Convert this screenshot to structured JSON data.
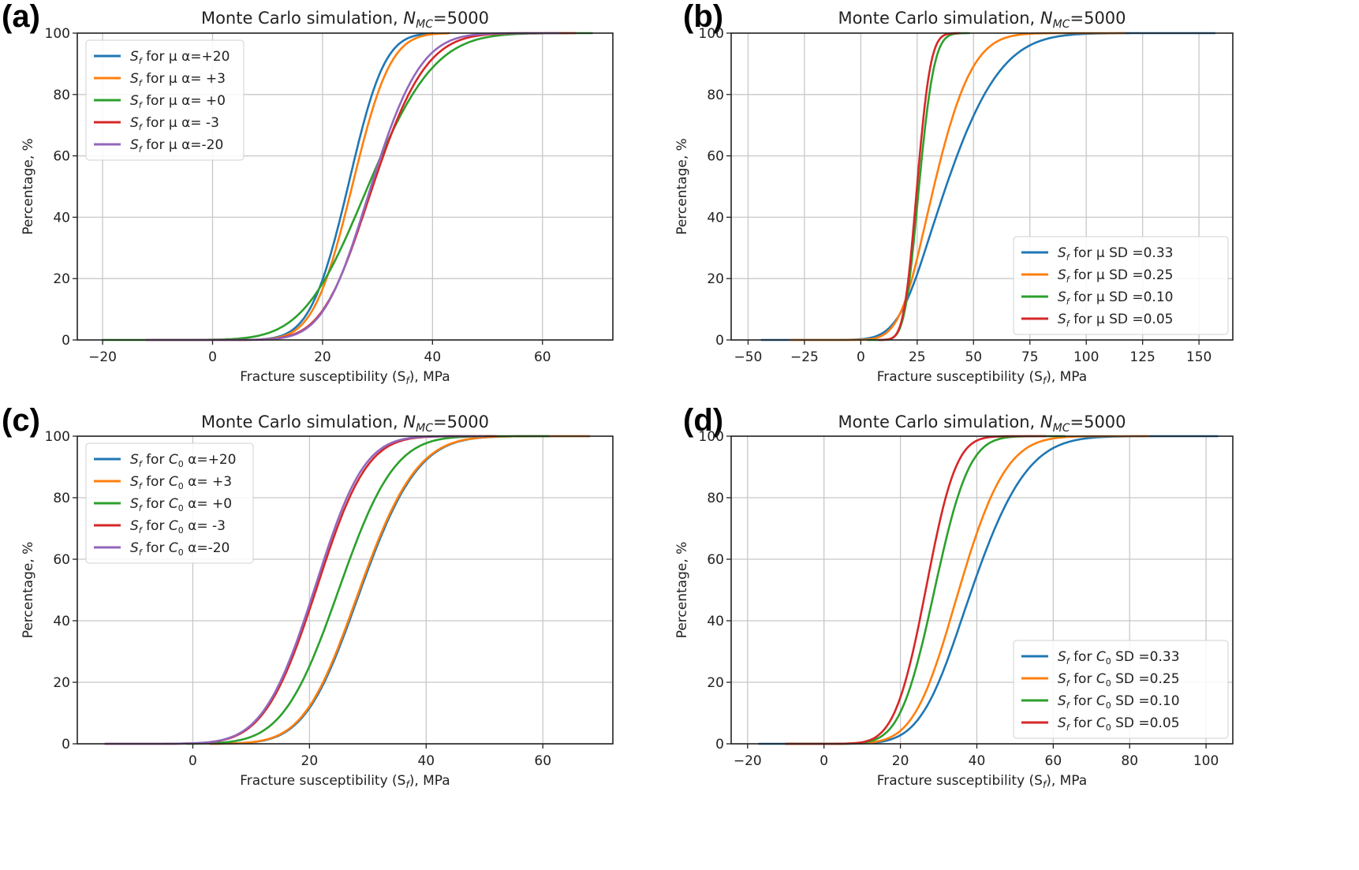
{
  "chart_data": [
    {
      "type": "line",
      "panel_label": "(a)",
      "title": "Monte Carlo simulation, ",
      "title_sym": "N",
      "title_sub": "MC",
      "title_tail": "=5000",
      "xlabel": "Fracture susceptibility (S",
      "xlabel_sub": "f",
      "xlabel_tail": "), MPa",
      "ylabel": "Percentage, %",
      "xlim": [
        -24.6,
        72.8
      ],
      "ylim": [
        0,
        100
      ],
      "xticks": [
        -20,
        0,
        20,
        40,
        60
      ],
      "xtick_labels": [
        "−20",
        "0",
        "20",
        "40",
        "60"
      ],
      "yticks": [
        0,
        20,
        40,
        60,
        80,
        100
      ],
      "ytick_labels": [
        "0",
        "20",
        "40",
        "60",
        "80",
        "100"
      ],
      "grid": true,
      "legend_position": "upper-left",
      "series": [
        {
          "name": "S_f for μ α=+20",
          "legend_sym": "S",
          "legend_sub": "f",
          "legend_text": " for μ α=+20",
          "color": "#1f77b4",
          "mean": 25.0,
          "sd_left": 5.6,
          "sd_right": 5.0,
          "xmin": 9,
          "xmax": 40
        },
        {
          "name": "S_f for μ α= +3",
          "legend_sym": "S",
          "legend_sub": "f",
          "legend_text": " for μ α= +3",
          "color": "#ff7f0e",
          "mean": 25.5,
          "sd_left": 5.6,
          "sd_right": 5.4,
          "xmin": 9,
          "xmax": 43
        },
        {
          "name": "S_f for μ α= +0",
          "legend_sym": "S",
          "legend_sub": "f",
          "legend_text": " for μ α= +0",
          "color": "#2ca02c",
          "mean": 27.5,
          "sd_left": 8.8,
          "sd_right": 10.0,
          "xmin": -20,
          "xmax": 69
        },
        {
          "name": "S_f for μ α= -3",
          "legend_sym": "S",
          "legend_sub": "f",
          "legend_text": " for μ α= -3",
          "color": "#d62728",
          "mean": 28.0,
          "sd_left": 6.5,
          "sd_right": 8.3,
          "xmin": -12,
          "xmax": 66
        },
        {
          "name": "S_f for μ α=-20",
          "legend_sym": "S",
          "legend_sub": "f",
          "legend_text": " for μ α=-20",
          "color": "#9467bd",
          "mean": 28.0,
          "sd_left": 6.3,
          "sd_right": 7.6,
          "xmin": -12,
          "xmax": 63
        }
      ]
    },
    {
      "type": "line",
      "panel_label": "(b)",
      "title": "Monte Carlo simulation, ",
      "title_sym": "N",
      "title_sub": "MC",
      "title_tail": "=5000",
      "xlabel": "Fracture susceptibility (S",
      "xlabel_sub": "f",
      "xlabel_tail": "), MPa",
      "ylabel": "Percentage, %",
      "xlim": [
        -57.5,
        165
      ],
      "ylim": [
        0,
        100
      ],
      "xticks": [
        -50,
        -25,
        0,
        25,
        50,
        75,
        100,
        125,
        150
      ],
      "xtick_labels": [
        "−50",
        "−25",
        "0",
        "25",
        "50",
        "75",
        "100",
        "125",
        "150"
      ],
      "yticks": [
        0,
        20,
        40,
        60,
        80,
        100
      ],
      "ytick_labels": [
        "0",
        "20",
        "40",
        "60",
        "80",
        "100"
      ],
      "grid": true,
      "legend_position": "lower-right",
      "series": [
        {
          "name": "S_f for μ SD=0.33",
          "legend_sym": "S",
          "legend_sub": "f",
          "legend_text": " for μ SD =0.33",
          "color": "#1f77b4",
          "mean": 29.5,
          "sd_left": 11.0,
          "sd_right": 24.0,
          "xmin": -44,
          "xmax": 157
        },
        {
          "name": "S_f for μ SD=0.25",
          "legend_sym": "S",
          "legend_sub": "f",
          "legend_text": " for μ SD =0.25",
          "color": "#ff7f0e",
          "mean": 28.0,
          "sd_left": 9.0,
          "sd_right": 16.0,
          "xmin": -31,
          "xmax": 117
        },
        {
          "name": "S_f for μ SD=0.10",
          "legend_sym": "S",
          "legend_sub": "f",
          "legend_text": " for μ SD =0.10",
          "color": "#2ca02c",
          "mean": 25.0,
          "sd_left": 4.5,
          "sd_right": 5.8,
          "xmin": 3,
          "xmax": 48
        },
        {
          "name": "S_f for μ SD=0.05",
          "legend_sym": "S",
          "legend_sub": "f",
          "legend_text": " for μ SD =0.05",
          "color": "#d62728",
          "mean": 24.5,
          "sd_left": 4.3,
          "sd_right": 5.0,
          "xmin": 8,
          "xmax": 44
        }
      ]
    },
    {
      "type": "line",
      "panel_label": "(c)",
      "title": "Monte Carlo simulation, ",
      "title_sym": "N",
      "title_sub": "MC",
      "title_tail": "=5000",
      "xlabel": "Fracture susceptibility (S",
      "xlabel_sub": "f",
      "xlabel_tail": "), MPa",
      "ylabel": "Percentage, %",
      "xlim": [
        -19.8,
        72
      ],
      "ylim": [
        0,
        100
      ],
      "xticks": [
        0,
        20,
        40,
        60
      ],
      "xtick_labels": [
        "0",
        "20",
        "40",
        "60"
      ],
      "yticks": [
        0,
        20,
        40,
        60,
        80,
        100
      ],
      "ytick_labels": [
        "0",
        "20",
        "40",
        "60",
        "80",
        "100"
      ],
      "grid": true,
      "legend_position": "upper-left",
      "series": [
        {
          "name": "S_f for C0 α=+20",
          "legend_sym": "S",
          "legend_sub": "f",
          "legend_text": " for C",
          "legend_text_sub": "0",
          "legend_text_tail": " α=+20",
          "color": "#1f77b4",
          "mean": 28.0,
          "sd_left": 7.0,
          "sd_right": 8.2,
          "xmin": 3,
          "xmax": 68
        },
        {
          "name": "S_f for C0 α= +3",
          "legend_sym": "S",
          "legend_sub": "f",
          "legend_text": " for C",
          "legend_text_sub": "0",
          "legend_text_tail": " α= +3",
          "color": "#ff7f0e",
          "mean": 27.8,
          "sd_left": 7.0,
          "sd_right": 8.2,
          "xmin": 3,
          "xmax": 68
        },
        {
          "name": "S_f for C0 α= +0",
          "legend_sym": "S",
          "legend_sub": "f",
          "legend_text": " for C",
          "legend_text_sub": "0",
          "legend_text_tail": " α= +0",
          "color": "#2ca02c",
          "mean": 25.0,
          "sd_left": 7.5,
          "sd_right": 7.5,
          "xmin": -1,
          "xmax": 61
        },
        {
          "name": "S_f for C0 α= -3",
          "legend_sym": "S",
          "legend_sub": "f",
          "legend_text": " for C",
          "legend_text_sub": "0",
          "legend_text_tail": " α= -3",
          "color": "#d62728",
          "mean": 21.5,
          "sd_left": 7.2,
          "sd_right": 6.6,
          "xmin": -15,
          "xmax": 52
        },
        {
          "name": "S_f for C0 α=-20",
          "legend_sym": "S",
          "legend_sub": "f",
          "legend_text": " for C",
          "legend_text_sub": "0",
          "legend_text_tail": " α=-20",
          "color": "#9467bd",
          "mean": 21.3,
          "sd_left": 7.2,
          "sd_right": 6.4,
          "xmin": -15,
          "xmax": 50
        }
      ]
    },
    {
      "type": "line",
      "panel_label": "(d)",
      "title": "Monte Carlo simulation, ",
      "title_sym": "N",
      "title_sub": "MC",
      "title_tail": "=5000",
      "xlabel": "Fracture susceptibility (S",
      "xlabel_sub": "f",
      "xlabel_tail": "), MPa",
      "ylabel": "Percentage, %",
      "xlim": [
        -24.3,
        107
      ],
      "ylim": [
        0,
        100
      ],
      "xticks": [
        -20,
        0,
        20,
        40,
        60,
        80,
        100
      ],
      "xtick_labels": [
        "−20",
        "0",
        "20",
        "40",
        "60",
        "80",
        "100"
      ],
      "yticks": [
        0,
        20,
        40,
        60,
        80,
        100
      ],
      "ytick_labels": [
        "0",
        "20",
        "40",
        "60",
        "80",
        "100"
      ],
      "grid": true,
      "legend_position": "lower-right",
      "series": [
        {
          "name": "S_f for C0 SD=0.33",
          "legend_sym": "S",
          "legend_sub": "f",
          "legend_text": " for C",
          "legend_text_sub": "0",
          "legend_text_tail": " SD =0.33",
          "color": "#1f77b4",
          "mean": 36.0,
          "sd_left": 8.8,
          "sd_right": 13.0,
          "xmin": -17,
          "xmax": 103
        },
        {
          "name": "S_f for C0 SD=0.25",
          "legend_sym": "S",
          "legend_sub": "f",
          "legend_text": " for C",
          "legend_text_sub": "0",
          "legend_text_tail": " SD =0.25",
          "color": "#ff7f0e",
          "mean": 34.0,
          "sd_left": 8.4,
          "sd_right": 10.5,
          "xmin": -10,
          "xmax": 85
        },
        {
          "name": "S_f for C0 SD=0.10",
          "legend_sym": "S",
          "legend_sub": "f",
          "legend_text": " for C",
          "legend_text_sub": "0",
          "legend_text_tail": " SD =0.10",
          "color": "#2ca02c",
          "mean": 28.8,
          "sd_left": 7.0,
          "sd_right": 7.2,
          "xmin": -10,
          "xmax": 63
        },
        {
          "name": "S_f for C0 SD=0.05",
          "legend_sym": "S",
          "legend_sub": "f",
          "legend_text": " for C",
          "legend_text_sub": "0",
          "legend_text_tail": " SD =0.05",
          "color": "#d62728",
          "mean": 27.0,
          "sd_left": 6.6,
          "sd_right": 6.0,
          "xmin": -10,
          "xmax": 58
        }
      ]
    }
  ]
}
